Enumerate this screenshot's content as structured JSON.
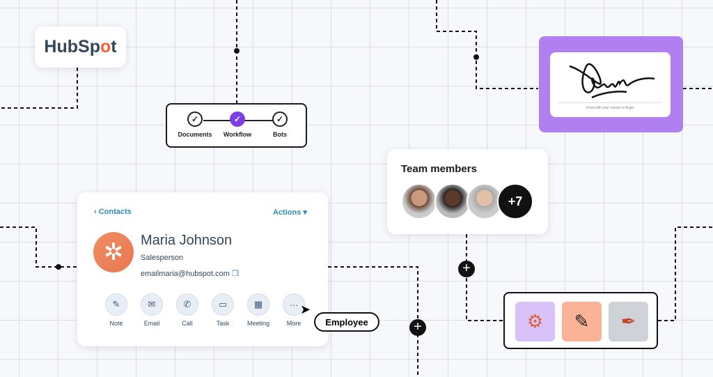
{
  "logo": {
    "text_a": "HubSp",
    "text_o": "o",
    "text_b": "t"
  },
  "steps": [
    {
      "label": "Documents",
      "active": false
    },
    {
      "label": "Workflow",
      "active": true
    },
    {
      "label": "Bots",
      "active": false
    }
  ],
  "signature": {
    "hint": "Draw with your mouse or finger",
    "bg": "#b07ff0"
  },
  "team": {
    "title": "Team members",
    "more": "+7"
  },
  "contact": {
    "back": "Contacts",
    "actions": "Actions",
    "name": "Maria Johnson",
    "role": "Salesperson",
    "email": "emailmaria@hubspot.com",
    "buttons": [
      {
        "label": "Note",
        "icon": "✎"
      },
      {
        "label": "Email",
        "icon": "✉"
      },
      {
        "label": "Call",
        "icon": "✆"
      },
      {
        "label": "Task",
        "icon": "▭"
      },
      {
        "label": "Meeting",
        "icon": "▦"
      },
      {
        "label": "More",
        "icon": "···"
      }
    ]
  },
  "tooltip": "Employee",
  "tools": [
    {
      "icon": "⚙",
      "color": "#d9c2f7"
    },
    {
      "icon": "✎",
      "color": "#fbb398"
    },
    {
      "icon": "✒",
      "color": "#cfd3d8"
    }
  ],
  "accent": "#7b3fe4",
  "link_color": "#2d8ab3"
}
